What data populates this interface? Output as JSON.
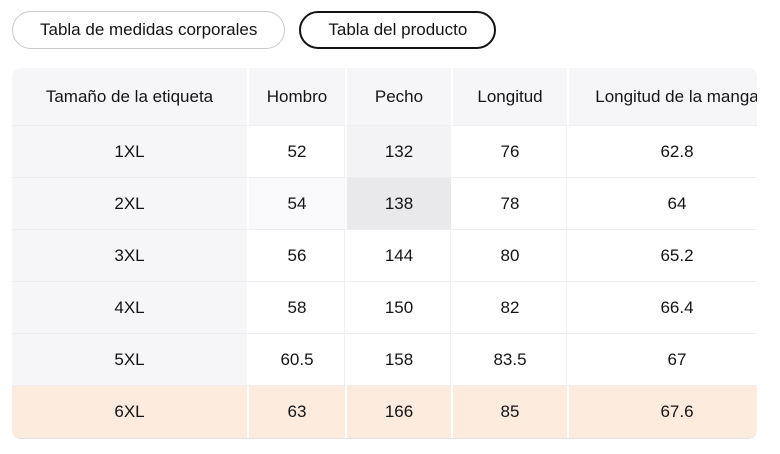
{
  "tabs": [
    {
      "id": "body-measurements",
      "label": "Tabla de medidas corporales",
      "active": false
    },
    {
      "id": "product",
      "label": "Tabla del producto",
      "active": true
    }
  ],
  "size_table": {
    "columns": [
      "Tamaño de la etiqueta",
      "Hombro",
      "Pecho",
      "Longitud",
      "Longitud de la manga"
    ],
    "rows": [
      {
        "size": "1XL",
        "values": [
          "52",
          "132",
          "76",
          "62.8"
        ]
      },
      {
        "size": "2XL",
        "values": [
          "54",
          "138",
          "78",
          "64"
        ]
      },
      {
        "size": "3XL",
        "values": [
          "56",
          "144",
          "80",
          "65.2"
        ]
      },
      {
        "size": "4XL",
        "values": [
          "58",
          "150",
          "82",
          "66.4"
        ]
      },
      {
        "size": "5XL",
        "values": [
          "60.5",
          "158",
          "83.5",
          "67"
        ]
      },
      {
        "size": "6XL",
        "values": [
          "63",
          "166",
          "85",
          "67.6"
        ]
      }
    ],
    "selected_row_index": 5,
    "crosshair": {
      "row_index": 1,
      "value_col_index": 1,
      "value": "138"
    },
    "colors": {
      "selected_row_bg": "#fdecdd",
      "header_bg": "#f6f6f8",
      "crosshair_cell_bg": "#e9e9ec",
      "active_tab_border": "#131314"
    }
  }
}
